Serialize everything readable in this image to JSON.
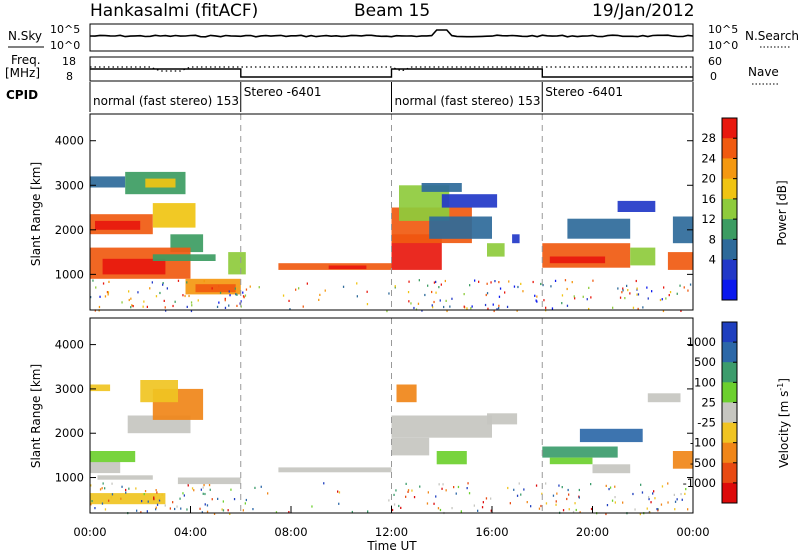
{
  "header": {
    "station": "Hankasalmi (fitACF)",
    "beam": "Beam 15",
    "date": "19/Jan/2012"
  },
  "strip_panels": {
    "nsky_label": "N.Sky",
    "nsearch_label": "N.Search",
    "noise_ticks": [
      "10^5",
      "10^0"
    ],
    "freq_label_1": "Freq.",
    "freq_label_2": "[MHz]",
    "freq_ticks": [
      "18",
      "8"
    ],
    "nave_label": "Nave",
    "nave_ticks": [
      "60",
      "0"
    ],
    "cpid_label": "CPID"
  },
  "cpid_segments": [
    {
      "start_hour": 0,
      "label": "normal (fast stereo) 153"
    },
    {
      "start_hour": 6,
      "label": "Stereo -6401"
    },
    {
      "start_hour": 12,
      "label": "normal (fast stereo) 153"
    },
    {
      "start_hour": 18,
      "label": "Stereo -6401"
    }
  ],
  "chart_data": [
    {
      "type": "heatmap",
      "name": "power",
      "ylabel": "Slant Range [km]",
      "ylim": [
        200,
        4600
      ],
      "yticks": [
        "4000",
        "3000",
        "2000",
        "1000"
      ],
      "x_range_hours": [
        0,
        24
      ],
      "colorbar": {
        "label": "Power [dB]",
        "ticks": [
          "28",
          "24",
          "20",
          "16",
          "12",
          "8",
          "4"
        ],
        "colors": [
          "#e8180e",
          "#f05a10",
          "#f49810",
          "#f0c412",
          "#8ecb3c",
          "#3c9c62",
          "#2e6a9a",
          "#2238c8",
          "#0a18ee"
        ]
      }
    },
    {
      "type": "heatmap",
      "name": "velocity",
      "ylabel": "Slant Range [km]",
      "ylim": [
        200,
        4600
      ],
      "yticks": [
        "4000",
        "3000",
        "2000",
        "1000"
      ],
      "x_range_hours": [
        0,
        24
      ],
      "colorbar": {
        "label": "Velocity [m s",
        "label_sup": "-1",
        "label_end": "]",
        "ticks": [
          "1000",
          "500",
          "100",
          "25",
          "-25",
          "-100",
          "-500",
          "-1000"
        ],
        "colors": [
          "#1f3fbf",
          "#2c68a8",
          "#3c9c6c",
          "#6cd02e",
          "#c6c6c0",
          "#f0c422",
          "#f08618",
          "#e84a12",
          "#dd0a0a"
        ]
      }
    }
  ],
  "time_axis": {
    "label": "Time UT",
    "ticks": [
      "00:00",
      "04:00",
      "08:00",
      "12:00",
      "16:00",
      "20:00",
      "00:00"
    ]
  }
}
